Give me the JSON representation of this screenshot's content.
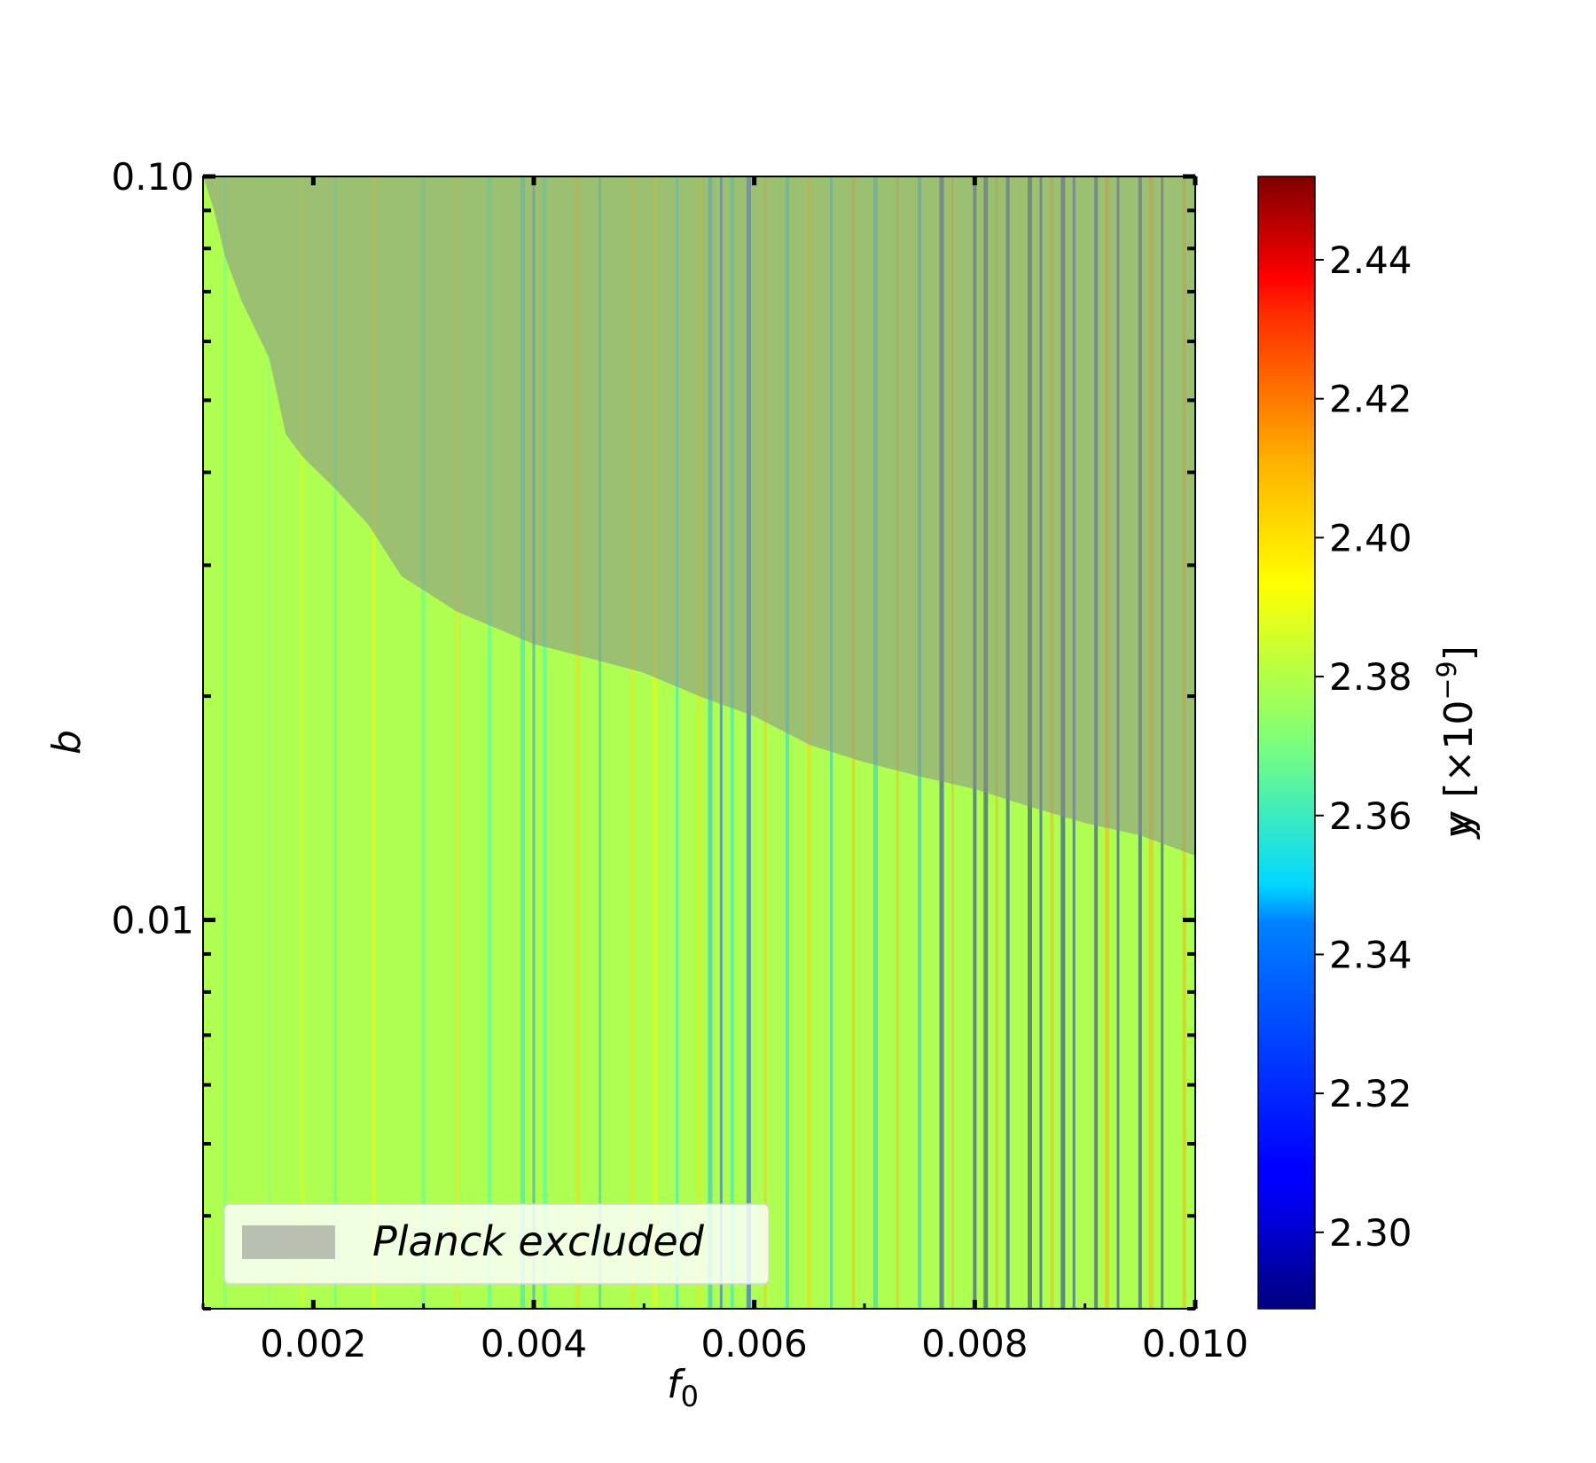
{
  "chart_data": {
    "type": "heatmap",
    "xlabel_base": "f",
    "xlabel_sub": "0",
    "ylabel": "b",
    "xlim": [
      0.001,
      0.01
    ],
    "ylim": [
      0.003,
      0.1
    ],
    "yscale": "log",
    "x_ticks": [
      {
        "value": 0.002,
        "label": "0.002"
      },
      {
        "value": 0.004,
        "label": "0.004"
      },
      {
        "value": 0.006,
        "label": "0.006"
      },
      {
        "value": 0.008,
        "label": "0.008"
      },
      {
        "value": 0.01,
        "label": "0.010"
      }
    ],
    "y_major_ticks": [
      {
        "value": 0.1,
        "label": "0.10"
      },
      {
        "value": 0.01,
        "label": "0.01"
      }
    ],
    "colorbar": {
      "label_base": "y [×10",
      "label_exp": "−9",
      "label_close": "]",
      "min": 2.289,
      "max": 2.452,
      "colormap": "jet",
      "ticks": [
        {
          "value": 2.3,
          "label": "2.30"
        },
        {
          "value": 2.32,
          "label": "2.32"
        },
        {
          "value": 2.34,
          "label": "2.34"
        },
        {
          "value": 2.36,
          "label": "2.36"
        },
        {
          "value": 2.38,
          "label": "2.38"
        },
        {
          "value": 2.4,
          "label": "2.40"
        },
        {
          "value": 2.42,
          "label": "2.42"
        },
        {
          "value": 2.44,
          "label": "2.44"
        }
      ]
    },
    "excluded_region": {
      "legend_label": "Planck excluded",
      "color": "#8c8c8c",
      "opacity": 0.55,
      "boundary": [
        [
          0.001,
          0.1
        ],
        [
          0.0011,
          0.09
        ],
        [
          0.0012,
          0.078
        ],
        [
          0.00135,
          0.068
        ],
        [
          0.0016,
          0.057
        ],
        [
          0.00175,
          0.045
        ],
        [
          0.0019,
          0.042
        ],
        [
          0.0022,
          0.038
        ],
        [
          0.0025,
          0.034
        ],
        [
          0.0028,
          0.029
        ],
        [
          0.0033,
          0.026
        ],
        [
          0.004,
          0.0235
        ],
        [
          0.0045,
          0.0225
        ],
        [
          0.005,
          0.0215
        ],
        [
          0.0055,
          0.02
        ],
        [
          0.006,
          0.0188
        ],
        [
          0.0065,
          0.0172
        ],
        [
          0.007,
          0.0163
        ],
        [
          0.0075,
          0.0156
        ],
        [
          0.008,
          0.015
        ],
        [
          0.0085,
          0.0142
        ],
        [
          0.009,
          0.0135
        ],
        [
          0.0095,
          0.013
        ],
        [
          0.01,
          0.0122
        ]
      ]
    },
    "background_value": 2.378,
    "stripes": [
      {
        "x": 0.0012,
        "v": 2.365
      },
      {
        "x": 0.0016,
        "v": 2.372
      },
      {
        "x": 0.0019,
        "v": 2.385
      },
      {
        "x": 0.0022,
        "v": 2.36
      },
      {
        "x": 0.00255,
        "v": 2.392
      },
      {
        "x": 0.003,
        "v": 2.362
      },
      {
        "x": 0.0033,
        "v": 2.396
      },
      {
        "x": 0.0036,
        "v": 2.355
      },
      {
        "x": 0.0039,
        "v": 2.345
      },
      {
        "x": 0.004,
        "v": 2.33
      },
      {
        "x": 0.0041,
        "v": 2.352
      },
      {
        "x": 0.0044,
        "v": 2.398
      },
      {
        "x": 0.0046,
        "v": 2.34
      },
      {
        "x": 0.0049,
        "v": 2.395
      },
      {
        "x": 0.0051,
        "v": 2.392
      },
      {
        "x": 0.0053,
        "v": 2.345
      },
      {
        "x": 0.0055,
        "v": 2.395
      },
      {
        "x": 0.0056,
        "v": 2.338
      },
      {
        "x": 0.0057,
        "v": 2.318
      },
      {
        "x": 0.0058,
        "v": 2.345
      },
      {
        "x": 0.00595,
        "v": 2.315
      },
      {
        "x": 0.0061,
        "v": 2.402
      },
      {
        "x": 0.0063,
        "v": 2.342
      },
      {
        "x": 0.0065,
        "v": 2.398
      },
      {
        "x": 0.0067,
        "v": 2.338
      },
      {
        "x": 0.0069,
        "v": 2.402
      },
      {
        "x": 0.0071,
        "v": 2.34
      },
      {
        "x": 0.0073,
        "v": 2.404
      },
      {
        "x": 0.0075,
        "v": 2.336
      },
      {
        "x": 0.0077,
        "v": 2.3
      },
      {
        "x": 0.0078,
        "v": 2.404
      },
      {
        "x": 0.008,
        "v": 2.298
      },
      {
        "x": 0.0081,
        "v": 2.295
      },
      {
        "x": 0.0082,
        "v": 2.405
      },
      {
        "x": 0.0083,
        "v": 2.3
      },
      {
        "x": 0.0085,
        "v": 2.292
      },
      {
        "x": 0.0086,
        "v": 2.3
      },
      {
        "x": 0.0087,
        "v": 2.405
      },
      {
        "x": 0.0088,
        "v": 2.296
      },
      {
        "x": 0.0089,
        "v": 2.305
      },
      {
        "x": 0.0091,
        "v": 2.298
      },
      {
        "x": 0.0092,
        "v": 2.405
      },
      {
        "x": 0.0093,
        "v": 2.302
      },
      {
        "x": 0.0095,
        "v": 2.298
      },
      {
        "x": 0.0096,
        "v": 2.405
      },
      {
        "x": 0.0097,
        "v": 2.3
      },
      {
        "x": 0.0099,
        "v": 2.405
      }
    ]
  }
}
